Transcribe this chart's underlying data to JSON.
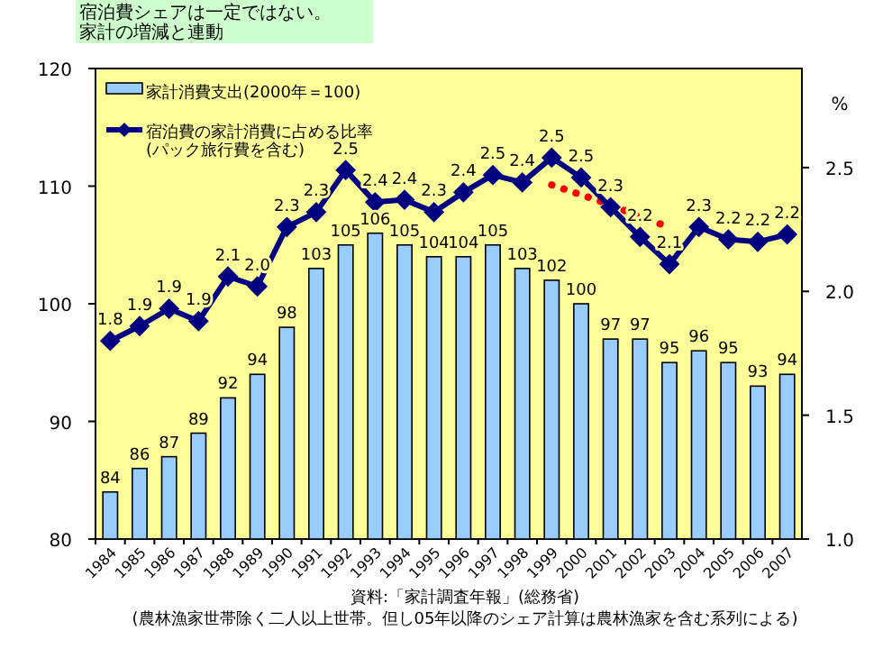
{
  "chart_data": {
    "type": "bar",
    "title": "宿泊費シェアは一定ではない。",
    "subtitle": "家計の増減と連動",
    "categories": [
      "1984",
      "1985",
      "1986",
      "1987",
      "1988",
      "1989",
      "1990",
      "1991",
      "1992",
      "1993",
      "1994",
      "1995",
      "1996",
      "1997",
      "1998",
      "1999",
      "2000",
      "2001",
      "2002",
      "2003",
      "2004",
      "2005",
      "2006",
      "2007"
    ],
    "series": [
      {
        "type": "line",
        "axis": "y2",
        "color": "#ff0000",
        "line_style": "dotted",
        "values": [
          null,
          null,
          null,
          null,
          null,
          null,
          null,
          null,
          null,
          null,
          null,
          null,
          null,
          null,
          null,
          2.43,
          2.39,
          2.35,
          2.3,
          2.26,
          null,
          null,
          null,
          null
        ]
      },
      {
        "name": "家計消費支出(2000年＝100)",
        "color": "#99ccff",
        "values": [
          84,
          86,
          87,
          89,
          92,
          94,
          98,
          103,
          105,
          106,
          105,
          104,
          104,
          105,
          103,
          102,
          100,
          97,
          97,
          95,
          96,
          95,
          93,
          94
        ],
        "value_labels": [
          "84",
          "86",
          "87",
          "89",
          "92",
          "94",
          "98",
          "103",
          "105",
          "106",
          "105",
          "104",
          "104",
          "105",
          "103",
          "102",
          "100",
          "97",
          "97",
          "95",
          "96",
          "95",
          "93",
          "94"
        ]
      },
      {
        "name": "宿泊費の家計消費に占める比率\n(パック旅行費を含む)",
        "type": "line",
        "axis": "y2",
        "color": "#000080",
        "marker": "diamond",
        "line_style": "solid",
        "values": [
          1.8,
          1.86,
          1.93,
          1.88,
          2.06,
          2.02,
          2.26,
          2.32,
          2.49,
          2.36,
          2.37,
          2.32,
          2.4,
          2.47,
          2.44,
          2.54,
          2.46,
          2.34,
          2.22,
          2.11,
          2.26,
          2.21,
          2.2,
          2.23
        ],
        "value_labels": [
          "1.8",
          "1.9",
          "1.9",
          "1.9",
          "2.1",
          "2.0",
          "2.3",
          "2.3",
          "2.5",
          "2.4",
          "2.4",
          "2.3",
          "2.4",
          "2.5",
          "2.4",
          "2.5",
          "2.5",
          "2.3",
          "2.2",
          "2.1",
          "2.3",
          "2.2",
          "2.2",
          "2.2"
        ]
      }
    ],
    "ylim": [
      80,
      120
    ],
    "yticks": [
      80,
      90,
      100,
      110,
      120
    ],
    "y2lim": [
      1.0,
      2.9
    ],
    "y2ticks": [
      {
        "value": 1.0,
        "label": "1.0"
      },
      {
        "value": 1.5,
        "label": "1.5"
      },
      {
        "value": 2.0,
        "label": "2.0"
      },
      {
        "value": 2.5,
        "label": "2.5"
      }
    ],
    "y2label": "%",
    "legend": "top left",
    "annotations": [
      "資料:「家計調査年報」(総務省)",
      "(農林漁家世帯除く二人以上世帯。但し05年以降のシェア計算は農林漁家を含む系列による)"
    ]
  }
}
